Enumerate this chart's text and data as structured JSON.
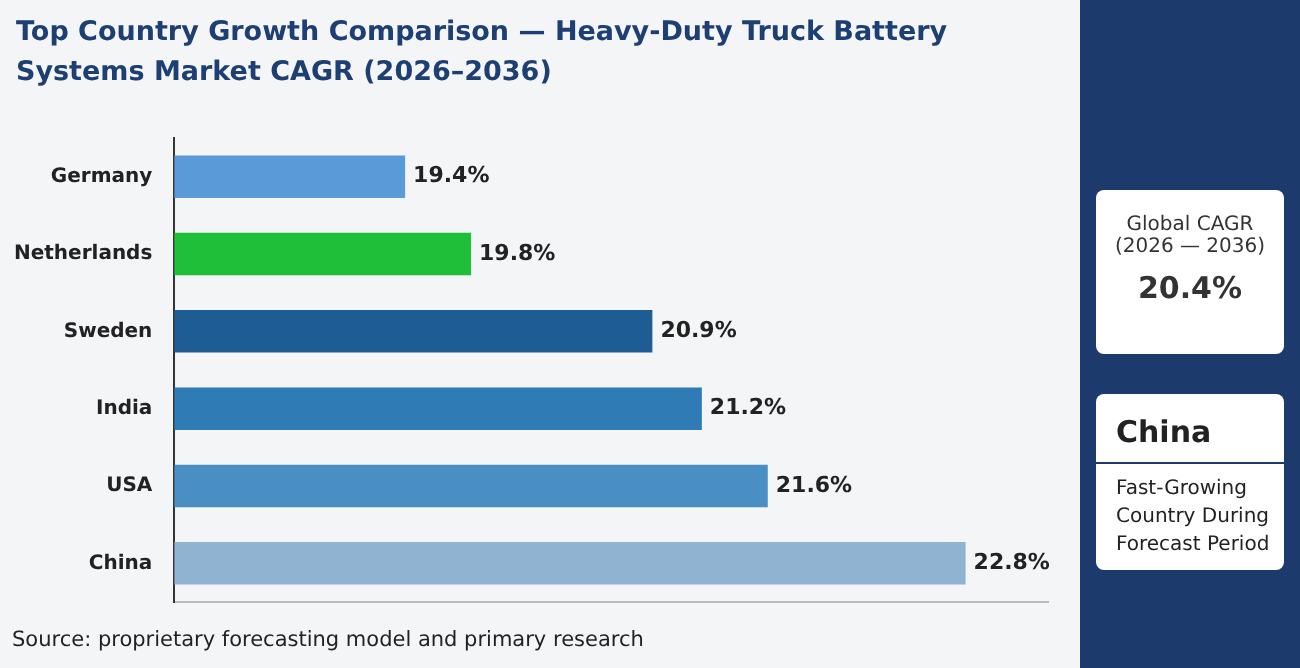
{
  "chart_data": {
    "type": "bar",
    "orientation": "horizontal",
    "title": "Top Country Growth Comparison — Heavy-Duty Truck Battery Systems Market CAGR (2026–2036)",
    "categories": [
      "Germany",
      "Netherlands",
      "Sweden",
      "India",
      "USA",
      "China"
    ],
    "values": [
      19.4,
      19.8,
      20.9,
      21.2,
      21.6,
      22.8
    ],
    "colors": [
      "#5b9ad8",
      "#1fbf3a",
      "#1d5d94",
      "#2f7bb5",
      "#4a8fc4",
      "#8fb3d0"
    ],
    "value_labels": [
      "19.4%",
      "19.8%",
      "20.9%",
      "21.2%",
      "21.6%",
      "22.8%"
    ],
    "xlim": [
      18,
      23.3
    ],
    "tick_labels": "y",
    "grid": false,
    "legend": false,
    "annotations": [
      "Source: proprietary forecasting model and primary research",
      "Global CAGR",
      "(2026 — 2036)",
      "20.4%",
      "China",
      "Fast-Growing Country During Forecast Period"
    ]
  }
}
